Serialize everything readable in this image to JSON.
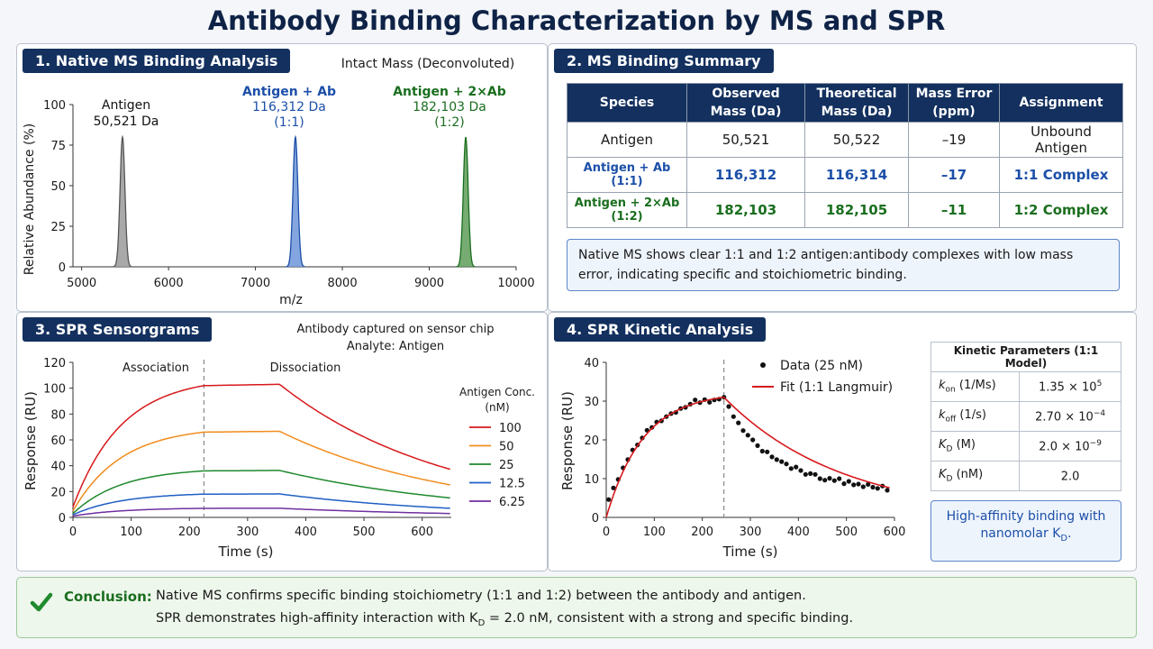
{
  "page_title": "Antibody Binding Characterization by MS and SPR",
  "panel1": {
    "title": "1. Native MS Binding Analysis",
    "subtitle": "Intact Mass (Deconvoluted)",
    "peak_labels": [
      {
        "name": "Antigen",
        "mass": "50,521 Da",
        "ratio": ""
      },
      {
        "name": "Antigen + Ab",
        "mass": "116,312 Da",
        "ratio": "(1:1)"
      },
      {
        "name": "Antigen + 2×Ab",
        "mass": "182,103 Da",
        "ratio": "(1:2)"
      }
    ]
  },
  "panel2": {
    "title": "2. MS Binding Summary",
    "headers": [
      "Species",
      "Observed Mass (Da)",
      "Theoretical Mass (Da)",
      "Mass Error (ppm)",
      "Assignment"
    ],
    "rows": [
      [
        "Antigen",
        "50,521",
        "50,522",
        "–19",
        "Unbound Antigen"
      ],
      [
        "Antigen + Ab (1:1)",
        "116,312",
        "116,314",
        "–17",
        "1:1 Complex"
      ],
      [
        "Antigen + 2×Ab (1:2)",
        "182,103",
        "182,105",
        "–11",
        "1:2 Complex"
      ]
    ],
    "note": "Native MS shows clear 1:1 and 1:2 antigen:antibody complexes with low mass error, indicating specific and stoichiometric binding."
  },
  "panel3": {
    "title": "3. SPR Sensorgrams",
    "subtitle1": "Antibody captured on sensor chip",
    "subtitle2": "Analyte: Antigen",
    "phase_assoc": "Association",
    "phase_dissoc": "Dissociation"
  },
  "panel4": {
    "title": "4. SPR Kinetic Analysis",
    "legend_data": "Data (25 nM)",
    "legend_fit": "Fit (1:1 Langmuir)",
    "kp_header": "Kinetic Parameters (1:1 Model)",
    "kp_rows": [
      {
        "sym": "k",
        "sub": "on",
        "unit": " (1/Ms)",
        "mant": "1.35 × 10",
        "exp": "5"
      },
      {
        "sym": "k",
        "sub": "off",
        "unit": " (1/s)",
        "mant": "2.70 × 10",
        "exp": "−4"
      },
      {
        "sym": "K",
        "sub": "D",
        "unit": " (M)",
        "mant": "2.0 × 10",
        "exp": "−9"
      },
      {
        "sym": "K",
        "sub": "D",
        "unit": " (nM)",
        "mant": "2.0",
        "exp": ""
      }
    ],
    "note_line1": "High-affinity binding with",
    "note_line2a": "nanomolar K",
    "note_line2sub": "D",
    "note_line2b": "."
  },
  "conclusion": {
    "label": "Conclusion:",
    "line1": "Native MS confirms specific binding stoichiometry (1:1 and 1:2) between the antibody and antigen.",
    "line2a": "SPR demonstrates high-affinity interaction with K",
    "line2sub": "D",
    "line2b": " = 2.0 nM, consistent with a strong and specific binding."
  },
  "chart_data": [
    {
      "type": "line",
      "id": "native_ms",
      "title": "Intact Mass (Deconvoluted)",
      "xlabel": "m/z",
      "ylabel": "Relative Abundance (%)",
      "xlim": [
        4900,
        10000
      ],
      "ylim": [
        0,
        100
      ],
      "xticks": [
        5000,
        6000,
        7000,
        8000,
        9000,
        10000
      ],
      "yticks": [
        0,
        25,
        50,
        75,
        100
      ],
      "series": [
        {
          "name": "Antigen",
          "peak_x": 5470,
          "peak_y": 80,
          "color": "#555555",
          "fill": "#9a9a9a"
        },
        {
          "name": "Antigen + Ab",
          "peak_x": 7460,
          "peak_y": 80,
          "color": "#1c4fa8",
          "fill": "#6f97da"
        },
        {
          "name": "Antigen + 2×Ab",
          "peak_x": 9420,
          "peak_y": 80,
          "color": "#1a6e1e",
          "fill": "#5e9e58"
        }
      ]
    },
    {
      "type": "line",
      "id": "spr_sensorgrams",
      "xlabel": "Time (s)",
      "ylabel": "Response (RU)",
      "xlim": [
        0,
        650
      ],
      "ylim": [
        0,
        120
      ],
      "xticks": [
        0,
        100,
        200,
        300,
        400,
        500,
        600
      ],
      "yticks": [
        0,
        20,
        40,
        60,
        80,
        100,
        120
      ],
      "injection_end": 225,
      "dissociation_start": 355,
      "legend_title": [
        "Antigen Conc.",
        "(nM)"
      ],
      "series": [
        {
          "name": "100",
          "color": "#d7191c",
          "start": 8,
          "plateau": 102,
          "end": 37
        },
        {
          "name": "50",
          "color": "#f28c1e",
          "start": 5,
          "plateau": 66,
          "end": 25
        },
        {
          "name": "25",
          "color": "#1f8a2e",
          "start": 3,
          "plateau": 36,
          "end": 15
        },
        {
          "name": "12.5",
          "color": "#1f5fc4",
          "start": 2,
          "plateau": 18,
          "end": 7
        },
        {
          "name": "6.25",
          "color": "#7030a0",
          "start": 1,
          "plateau": 7,
          "end": 3
        }
      ]
    },
    {
      "type": "scatter",
      "id": "spr_kinetics",
      "xlabel": "Time (s)",
      "ylabel": "Response (RU)",
      "xlim": [
        0,
        600
      ],
      "ylim": [
        0,
        40
      ],
      "xticks": [
        0,
        100,
        200,
        300,
        400,
        500,
        600
      ],
      "yticks": [
        0,
        10,
        20,
        30,
        40
      ],
      "injection_end": 245,
      "series": [
        {
          "name": "Data (25 nM)",
          "color": "#111111",
          "x": [
            5,
            15,
            25,
            35,
            45,
            55,
            65,
            75,
            85,
            95,
            105,
            115,
            125,
            135,
            145,
            155,
            165,
            175,
            185,
            195,
            205,
            215,
            225,
            235,
            245,
            255,
            265,
            275,
            285,
            295,
            305,
            315,
            325,
            335,
            345,
            355,
            365,
            375,
            385,
            395,
            405,
            415,
            425,
            435,
            445,
            455,
            465,
            475,
            485,
            495,
            505,
            515,
            525,
            535,
            545,
            555,
            565,
            575,
            585
          ],
          "y": [
            4.6,
            7.6,
            9.8,
            12.8,
            14.9,
            17.4,
            18.7,
            20.5,
            22.5,
            23.2,
            24.6,
            24.9,
            26.0,
            26.8,
            27.1,
            28.1,
            28.4,
            29.2,
            30.3,
            29.6,
            30.4,
            29.7,
            30.3,
            30.5,
            31.0,
            28.6,
            26.0,
            24.4,
            22.4,
            21.2,
            20.0,
            18.5,
            17.1,
            16.9,
            15.6,
            14.9,
            14.4,
            13.8,
            12.6,
            13.0,
            12.1,
            11.1,
            11.3,
            11.1,
            10.0,
            9.6,
            10.1,
            9.5,
            10.0,
            8.7,
            9.3,
            8.4,
            8.6,
            7.9,
            8.5,
            7.8,
            7.5,
            8.1,
            7.0
          ]
        },
        {
          "name": "Fit (1:1 Langmuir)",
          "color": "#d7191c",
          "plateau": 31,
          "end": 7.8
        }
      ]
    }
  ]
}
